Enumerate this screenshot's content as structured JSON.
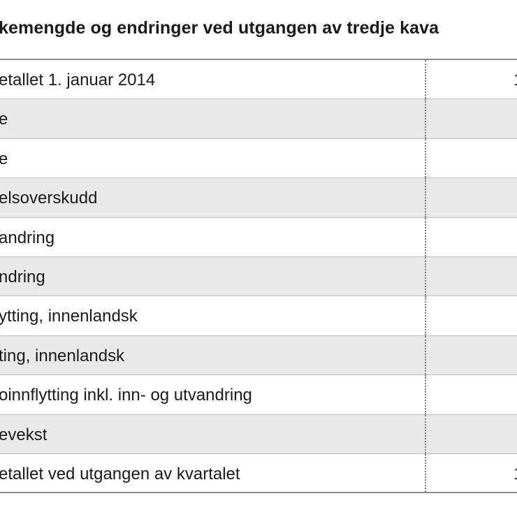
{
  "title": "kemengde og endringer ved utgangen av tredje kava",
  "rows": [
    {
      "label": "etallet 1. januar 2014",
      "value": "1",
      "shaded": false
    },
    {
      "label": "e",
      "value": "",
      "shaded": true
    },
    {
      "label": "e",
      "value": "",
      "shaded": false
    },
    {
      "label": "elsoverskudd",
      "value": "",
      "shaded": true
    },
    {
      "label": "andring",
      "value": "",
      "shaded": false
    },
    {
      "label": "ndring",
      "value": "",
      "shaded": true
    },
    {
      "label": "ytting, innenlandsk",
      "value": "",
      "shaded": false
    },
    {
      "label": "ting, innenlandsk",
      "value": "",
      "shaded": true
    },
    {
      "label": "oinnflytting inkl. inn- og utvandring",
      "value": "",
      "shaded": false
    },
    {
      "label": "evekst",
      "value": "",
      "shaded": true
    },
    {
      "label": "etallet ved utgangen av kvartalet",
      "value": "1",
      "shaded": false
    }
  ]
}
